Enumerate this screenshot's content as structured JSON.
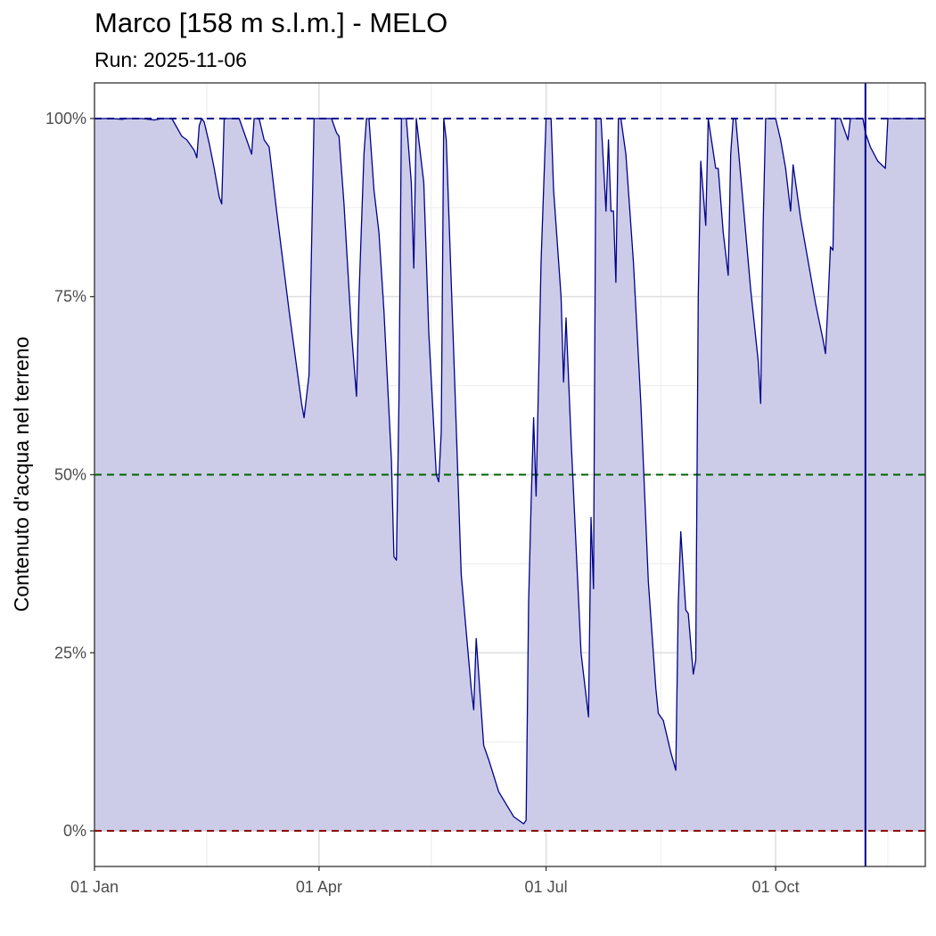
{
  "chart_data": {
    "type": "area",
    "title": "Marco [158 m s.l.m.] - MELO",
    "subtitle": "Run: 2025-11-06",
    "xlabel": "",
    "ylabel": "Contenuto d'acqua nel terreno",
    "x_ticks": [
      "01 Jan",
      "01 Apr",
      "01 Jul",
      "01 Oct"
    ],
    "y_ticks": [
      "0%",
      "25%",
      "50%",
      "75%",
      "100%"
    ],
    "xlim": [
      "2025-01-01",
      "2025-11-30"
    ],
    "ylim": [
      -0.05,
      1.05
    ],
    "grid": true,
    "reference_lines": [
      {
        "value": 1.0,
        "color": "#00008b",
        "style": "dashed"
      },
      {
        "value": 0.5,
        "color": "#006400",
        "style": "dashed"
      },
      {
        "value": 0.0,
        "color": "#8b0000",
        "style": "dashed"
      }
    ],
    "run_date_line": "2025-11-06",
    "series": [
      {
        "line_color": "#00008b",
        "fill_color": "#cccce8",
        "points": [
          [
            "2025-01-01",
            1.0
          ],
          [
            "2025-01-08",
            1.0
          ],
          [
            "2025-01-12",
            0.999
          ],
          [
            "2025-01-14",
            1.0
          ],
          [
            "2025-01-20",
            1.0
          ],
          [
            "2025-01-25",
            0.998
          ],
          [
            "2025-01-28",
            1.0
          ],
          [
            "2025-02-01",
            1.0
          ],
          [
            "2025-02-05",
            0.975
          ],
          [
            "2025-02-07",
            0.97
          ],
          [
            "2025-02-10",
            0.955
          ],
          [
            "2025-02-11",
            0.945
          ],
          [
            "2025-02-12",
            0.99
          ],
          [
            "2025-02-13",
            1.0
          ],
          [
            "2025-02-14",
            0.995
          ],
          [
            "2025-02-16",
            0.965
          ],
          [
            "2025-02-18",
            0.93
          ],
          [
            "2025-02-20",
            0.89
          ],
          [
            "2025-02-21",
            0.88
          ],
          [
            "2025-02-22",
            1.0
          ],
          [
            "2025-02-28",
            1.0
          ],
          [
            "2025-03-02",
            0.98
          ],
          [
            "2025-03-05",
            0.95
          ],
          [
            "2025-03-06",
            1.0
          ],
          [
            "2025-03-08",
            1.0
          ],
          [
            "2025-03-10",
            0.97
          ],
          [
            "2025-03-12",
            0.96
          ],
          [
            "2025-03-15",
            0.87
          ],
          [
            "2025-03-20",
            0.73
          ],
          [
            "2025-03-25",
            0.6
          ],
          [
            "2025-03-26",
            0.58
          ],
          [
            "2025-03-28",
            0.64
          ],
          [
            "2025-03-29",
            0.82
          ],
          [
            "2025-03-30",
            1.0
          ],
          [
            "2025-04-06",
            1.0
          ],
          [
            "2025-04-08",
            0.98
          ],
          [
            "2025-04-09",
            0.975
          ],
          [
            "2025-04-11",
            0.88
          ],
          [
            "2025-04-14",
            0.7
          ],
          [
            "2025-04-16",
            0.61
          ],
          [
            "2025-04-17",
            0.75
          ],
          [
            "2025-04-19",
            0.95
          ],
          [
            "2025-04-20",
            1.0
          ],
          [
            "2025-04-21",
            1.0
          ],
          [
            "2025-04-23",
            0.9
          ],
          [
            "2025-04-25",
            0.84
          ],
          [
            "2025-04-27",
            0.73
          ],
          [
            "2025-04-30",
            0.52
          ],
          [
            "2025-05-01",
            0.385
          ],
          [
            "2025-05-02",
            0.38
          ],
          [
            "2025-05-03",
            0.6
          ],
          [
            "2025-05-04",
            1.0
          ],
          [
            "2025-05-06",
            1.0
          ],
          [
            "2025-05-08",
            0.91
          ],
          [
            "2025-05-09",
            0.79
          ],
          [
            "2025-05-10",
            1.0
          ],
          [
            "2025-05-13",
            0.91
          ],
          [
            "2025-05-15",
            0.7
          ],
          [
            "2025-05-18",
            0.5
          ],
          [
            "2025-05-19",
            0.49
          ],
          [
            "2025-05-20",
            0.56
          ],
          [
            "2025-05-21",
            1.0
          ],
          [
            "2025-05-22",
            0.97
          ],
          [
            "2025-05-25",
            0.67
          ],
          [
            "2025-05-28",
            0.36
          ],
          [
            "2025-06-01",
            0.2
          ],
          [
            "2025-06-02",
            0.17
          ],
          [
            "2025-06-03",
            0.27
          ],
          [
            "2025-06-06",
            0.12
          ],
          [
            "2025-06-08",
            0.1
          ],
          [
            "2025-06-12",
            0.055
          ],
          [
            "2025-06-18",
            0.02
          ],
          [
            "2025-06-22",
            0.01
          ],
          [
            "2025-06-23",
            0.015
          ],
          [
            "2025-06-24",
            0.32
          ],
          [
            "2025-06-25",
            0.46
          ],
          [
            "2025-06-26",
            0.58
          ],
          [
            "2025-06-27",
            0.47
          ],
          [
            "2025-06-29",
            0.8
          ],
          [
            "2025-07-01",
            1.0
          ],
          [
            "2025-07-03",
            1.0
          ],
          [
            "2025-07-04",
            0.9
          ],
          [
            "2025-07-07",
            0.75
          ],
          [
            "2025-07-08",
            0.63
          ],
          [
            "2025-07-09",
            0.72
          ],
          [
            "2025-07-11",
            0.55
          ],
          [
            "2025-07-13",
            0.4
          ],
          [
            "2025-07-15",
            0.25
          ],
          [
            "2025-07-18",
            0.16
          ],
          [
            "2025-07-19",
            0.44
          ],
          [
            "2025-07-20",
            0.34
          ],
          [
            "2025-07-21",
            1.0
          ],
          [
            "2025-07-23",
            1.0
          ],
          [
            "2025-07-25",
            0.87
          ],
          [
            "2025-07-26",
            0.97
          ],
          [
            "2025-07-27",
            0.87
          ],
          [
            "2025-07-28",
            0.87
          ],
          [
            "2025-07-29",
            0.77
          ],
          [
            "2025-07-30",
            1.0
          ],
          [
            "2025-07-31",
            1.0
          ],
          [
            "2025-08-02",
            0.95
          ],
          [
            "2025-08-05",
            0.8
          ],
          [
            "2025-08-08",
            0.6
          ],
          [
            "2025-08-11",
            0.35
          ],
          [
            "2025-08-14",
            0.2
          ],
          [
            "2025-08-15",
            0.165
          ],
          [
            "2025-08-17",
            0.155
          ],
          [
            "2025-08-20",
            0.11
          ],
          [
            "2025-08-22",
            0.085
          ],
          [
            "2025-08-23",
            0.32
          ],
          [
            "2025-08-24",
            0.42
          ],
          [
            "2025-08-26",
            0.31
          ],
          [
            "2025-08-27",
            0.305
          ],
          [
            "2025-08-29",
            0.22
          ],
          [
            "2025-08-30",
            0.24
          ],
          [
            "2025-08-31",
            0.75
          ],
          [
            "2025-09-01",
            0.94
          ],
          [
            "2025-09-03",
            0.85
          ],
          [
            "2025-09-04",
            1.0
          ],
          [
            "2025-09-07",
            0.93
          ],
          [
            "2025-09-08",
            0.93
          ],
          [
            "2025-09-10",
            0.84
          ],
          [
            "2025-09-12",
            0.78
          ],
          [
            "2025-09-13",
            0.95
          ],
          [
            "2025-09-14",
            1.0
          ],
          [
            "2025-09-15",
            1.0
          ],
          [
            "2025-09-18",
            0.88
          ],
          [
            "2025-09-21",
            0.76
          ],
          [
            "2025-09-24",
            0.66
          ],
          [
            "2025-09-25",
            0.6
          ],
          [
            "2025-09-26",
            0.85
          ],
          [
            "2025-09-27",
            1.0
          ],
          [
            "2025-10-01",
            1.0
          ],
          [
            "2025-10-03",
            0.97
          ],
          [
            "2025-10-05",
            0.93
          ],
          [
            "2025-10-07",
            0.87
          ],
          [
            "2025-10-08",
            0.935
          ],
          [
            "2025-10-11",
            0.86
          ],
          [
            "2025-10-14",
            0.8
          ],
          [
            "2025-10-17",
            0.74
          ],
          [
            "2025-10-20",
            0.69
          ],
          [
            "2025-10-21",
            0.67
          ],
          [
            "2025-10-22",
            0.74
          ],
          [
            "2025-10-23",
            0.82
          ],
          [
            "2025-10-24",
            0.815
          ],
          [
            "2025-10-25",
            1.0
          ],
          [
            "2025-10-27",
            1.0
          ],
          [
            "2025-10-30",
            0.97
          ],
          [
            "2025-10-31",
            1.0
          ],
          [
            "2025-11-05",
            1.0
          ],
          [
            "2025-11-06",
            0.98
          ],
          [
            "2025-11-08",
            0.96
          ],
          [
            "2025-11-11",
            0.94
          ],
          [
            "2025-11-14",
            0.93
          ],
          [
            "2025-11-15",
            1.0
          ],
          [
            "2025-11-30",
            1.0
          ]
        ]
      }
    ]
  }
}
